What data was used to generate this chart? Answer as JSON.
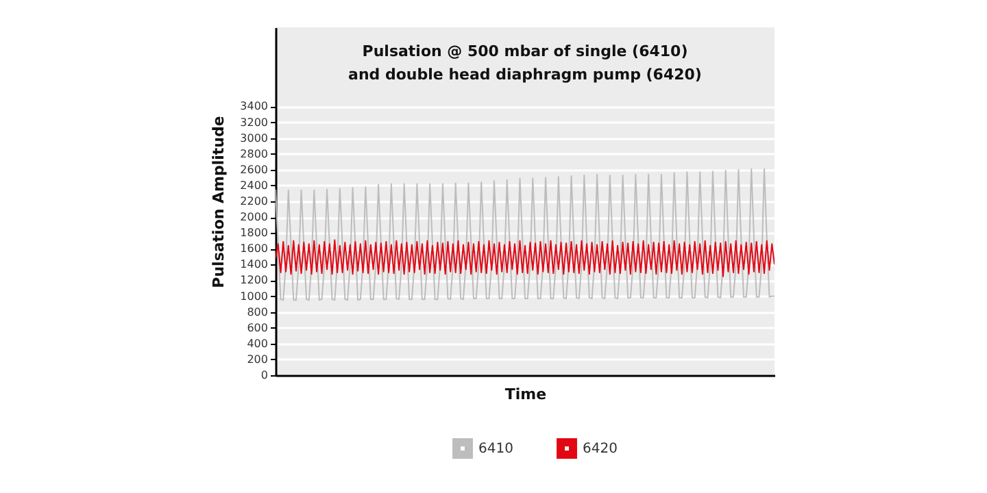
{
  "chart_data": {
    "type": "line",
    "title": "Pulsation @ 500 mbar of single (6410) and double head diaphragm pump (6420)",
    "xlabel": "Time",
    "ylabel": "Pulsation Amplitude",
    "tick_labels": "y",
    "grid": "y",
    "legend": "bottom",
    "marker": "none",
    "line_style": "solid",
    "ylim": [
      0,
      4400
    ],
    "yticks": [
      0,
      200,
      400,
      600,
      800,
      1000,
      1200,
      1400,
      1600,
      1800,
      2000,
      2200,
      2400,
      2600,
      2800,
      3000,
      3200,
      3400
    ],
    "categories": [
      null,
      null,
      null,
      null,
      null,
      null,
      null,
      null,
      null,
      null,
      null,
      null,
      null,
      null,
      null,
      null,
      null,
      null,
      null,
      null,
      null,
      null,
      null,
      null,
      null,
      null,
      null,
      null,
      null,
      null,
      null,
      null,
      null,
      null,
      null,
      null,
      null,
      null,
      null,
      null,
      null,
      null,
      null,
      null,
      null,
      null,
      null,
      null,
      null,
      null,
      null,
      null,
      null,
      null,
      null,
      null,
      null,
      null,
      null,
      null,
      null,
      null,
      null,
      null,
      null,
      null,
      null,
      null,
      null,
      null,
      null,
      null,
      null,
      null,
      null,
      null,
      null,
      null,
      null,
      null,
      null,
      null,
      null,
      null,
      null,
      null,
      null,
      null,
      null,
      null,
      null,
      null,
      null,
      null,
      null,
      null,
      null,
      null,
      null,
      null,
      null,
      null,
      null,
      null,
      null,
      null,
      null,
      null,
      null,
      null,
      null,
      null,
      null,
      null,
      null,
      null,
      null,
      null,
      null,
      null,
      null,
      null,
      null,
      null,
      null,
      null,
      null,
      null,
      null,
      null,
      null,
      null,
      null,
      null,
      null,
      null,
      null,
      null,
      null,
      null,
      null,
      null,
      null,
      null,
      null,
      null,
      null,
      null,
      null,
      null,
      null,
      null,
      null,
      null,
      null,
      null,
      null,
      null,
      null,
      null,
      null,
      null,
      null,
      null,
      null,
      null,
      null,
      null,
      null,
      null,
      null,
      null,
      null,
      null,
      null,
      null,
      null,
      null,
      null,
      null,
      null,
      null,
      null,
      null,
      null,
      null,
      null,
      null,
      null,
      null,
      null,
      null,
      null,
      null,
      null
    ],
    "series": [
      {
        "name": "6410",
        "color": "#bdbdbd",
        "values": [
          2350,
          1650,
          960,
          950,
          1400,
          2340,
          1640,
          950,
          950,
          1400,
          2340,
          1650,
          960,
          950,
          1400,
          2340,
          1650,
          950,
          960,
          1400,
          2350,
          1650,
          960,
          950,
          1400,
          2360,
          1660,
          960,
          950,
          1400,
          2370,
          1660,
          950,
          960,
          1400,
          2380,
          1660,
          960,
          960,
          1400,
          2410,
          1670,
          960,
          960,
          1400,
          2420,
          1670,
          970,
          960,
          1400,
          2420,
          1670,
          960,
          960,
          1400,
          2420,
          1670,
          960,
          960,
          1400,
          2420,
          1670,
          960,
          960,
          1400,
          2420,
          1670,
          970,
          960,
          1400,
          2430,
          1680,
          970,
          960,
          1400,
          2430,
          1680,
          970,
          970,
          1400,
          2440,
          1680,
          970,
          970,
          1400,
          2460,
          1690,
          970,
          970,
          1400,
          2470,
          1690,
          970,
          970,
          1400,
          2490,
          1700,
          970,
          970,
          1400,
          2490,
          1700,
          970,
          970,
          1400,
          2500,
          1700,
          970,
          970,
          1400,
          2510,
          1700,
          980,
          970,
          1400,
          2520,
          1710,
          980,
          970,
          1400,
          2530,
          1710,
          980,
          970,
          1400,
          2540,
          1710,
          980,
          970,
          1400,
          2530,
          1710,
          980,
          970,
          1400,
          2530,
          1710,
          980,
          980,
          1400,
          2540,
          1720,
          980,
          980,
          1400,
          2540,
          1720,
          980,
          980,
          1400,
          2540,
          1720,
          980,
          980,
          1400,
          2560,
          1720,
          980,
          980,
          1400,
          2570,
          1730,
          980,
          980,
          1400,
          2570,
          1730,
          990,
          980,
          1400,
          2580,
          1730,
          990,
          980,
          1400,
          2590,
          1740,
          990,
          990,
          1400,
          2600,
          1740,
          990,
          990,
          1400,
          2610,
          1740,
          990,
          990,
          1400,
          2610,
          1740,
          990,
          1000,
          1000
        ]
      },
      {
        "name": "6420",
        "color": "#e30613",
        "values": [
          1480,
          1660,
          1300,
          1690,
          1310,
          1640,
          1280,
          1700,
          1320,
          1650,
          1290,
          1680,
          1330,
          1660,
          1280,
          1700,
          1310,
          1650,
          1290,
          1690,
          1340,
          1660,
          1280,
          1710,
          1300,
          1640,
          1300,
          1680,
          1330,
          1650,
          1280,
          1690,
          1320,
          1660,
          1300,
          1700,
          1290,
          1650,
          1340,
          1680,
          1280,
          1670,
          1310,
          1690,
          1300,
          1650,
          1290,
          1700,
          1330,
          1660,
          1280,
          1680,
          1310,
          1650,
          1300,
          1690,
          1340,
          1660,
          1280,
          1700,
          1300,
          1640,
          1290,
          1680,
          1330,
          1670,
          1280,
          1690,
          1310,
          1660,
          1300,
          1700,
          1290,
          1650,
          1340,
          1680,
          1280,
          1660,
          1310,
          1690,
          1300,
          1650,
          1290,
          1700,
          1330,
          1660,
          1280,
          1680,
          1310,
          1650,
          1300,
          1690,
          1340,
          1660,
          1280,
          1700,
          1300,
          1640,
          1290,
          1680,
          1330,
          1670,
          1280,
          1690,
          1310,
          1660,
          1300,
          1700,
          1290,
          1650,
          1340,
          1680,
          1280,
          1670,
          1310,
          1690,
          1300,
          1650,
          1290,
          1700,
          1330,
          1660,
          1280,
          1680,
          1310,
          1650,
          1300,
          1690,
          1340,
          1660,
          1280,
          1700,
          1300,
          1640,
          1290,
          1680,
          1330,
          1670,
          1280,
          1690,
          1310,
          1660,
          1300,
          1700,
          1290,
          1650,
          1340,
          1680,
          1280,
          1670,
          1310,
          1690,
          1300,
          1650,
          1290,
          1700,
          1330,
          1660,
          1280,
          1680,
          1310,
          1650,
          1300,
          1690,
          1340,
          1660,
          1280,
          1700,
          1300,
          1640,
          1290,
          1680,
          1330,
          1670,
          1250,
          1690,
          1310,
          1660,
          1300,
          1700,
          1290,
          1650,
          1340,
          1680,
          1280,
          1670,
          1310,
          1690,
          1300,
          1650,
          1290,
          1700,
          1330,
          1660,
          1400
        ]
      }
    ]
  }
}
